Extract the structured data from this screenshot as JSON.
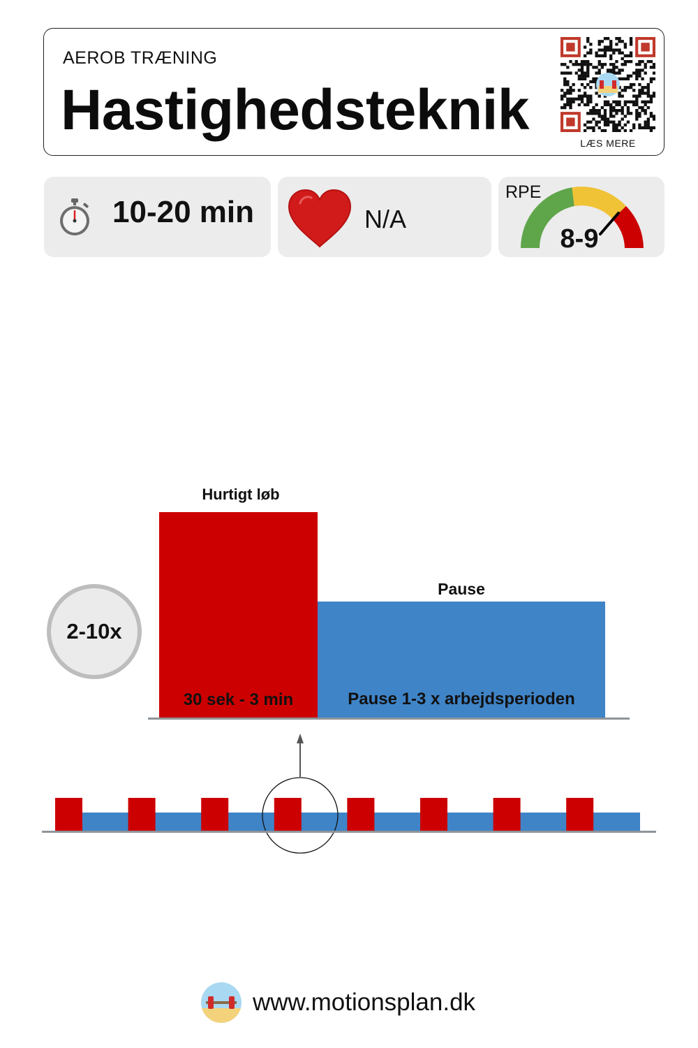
{
  "header": {
    "category": "AEROB TRÆNING",
    "title": "Hastighedsteknik",
    "qr_caption": "LÆS MERE"
  },
  "stats": {
    "duration": "10-20 min",
    "heart_rate": "N/A",
    "rpe_label": "RPE",
    "rpe_value": "8-9"
  },
  "interval": {
    "repeats": "2-10x",
    "work_label": "Hurtigt løb",
    "work_duration": "30 sek - 3 min",
    "rest_label": "Pause",
    "rest_duration": "Pause 1-3 x arbejdsperioden"
  },
  "footer": {
    "url": "www.motionsplan.dk"
  },
  "colors": {
    "work": "#cc0000",
    "rest": "#3f84c7",
    "card_bg": "#ececec",
    "gauge_green": "#5fa54a",
    "gauge_yellow": "#f0c235",
    "gauge_red": "#cc0000"
  },
  "icons": [
    "qr-code-icon",
    "stopwatch-icon",
    "heart-icon",
    "rpe-gauge-icon",
    "motionsplan-logo-icon"
  ]
}
